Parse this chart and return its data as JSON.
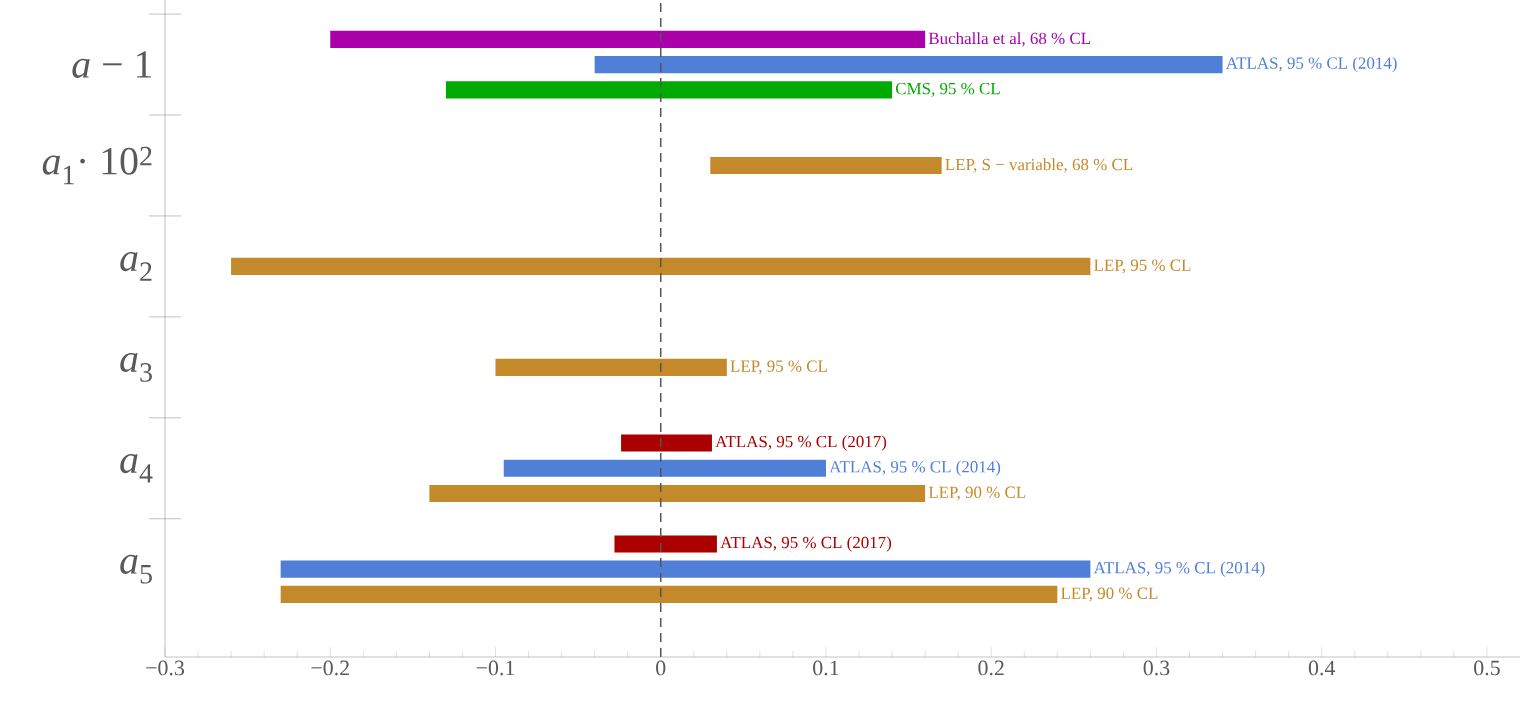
{
  "chart_data": {
    "type": "bar",
    "orientation": "horizontal",
    "categories": [
      "*a* − 1",
      "*a*$_{1}$· 10$^{2}$",
      "*a*$_{2}$",
      "*a*$_{3}$",
      "*a*$_{4}$",
      "*a*$_{5}$"
    ],
    "series": [
      {
        "name": "Buchalla et al,  68 % CL",
        "color": "#aa00aa",
        "base": [
          -0.2,
          null,
          null,
          null,
          null,
          null
        ],
        "values": [
          0.36,
          null,
          null,
          null,
          null,
          null
        ]
      },
      {
        "name": "ATLAS,  95 % CL (2017)",
        "color": "#aa0000",
        "base": [
          null,
          null,
          null,
          null,
          -0.024,
          -0.028
        ],
        "values": [
          null,
          null,
          null,
          null,
          0.055,
          0.062
        ]
      },
      {
        "name": "ATLAS,  95 % CL (2014)",
        "color": "#507fd8",
        "base": [
          -0.04,
          null,
          null,
          null,
          -0.095,
          -0.23
        ],
        "values": [
          0.38,
          null,
          null,
          null,
          0.195,
          0.49
        ]
      },
      {
        "name": "CMS,  95 % CL",
        "color": "#00aa00",
        "base": [
          -0.13,
          null,
          null,
          null,
          null,
          null
        ],
        "values": [
          0.27,
          null,
          null,
          null,
          null,
          null
        ]
      },
      {
        "name": "LEP,  S − variable,  68 % CL",
        "color": "#c4892b",
        "base": [
          null,
          0.03,
          null,
          null,
          null,
          null
        ],
        "values": [
          null,
          0.14,
          null,
          null,
          null,
          null
        ]
      },
      {
        "name": "LEP,  95 % CL",
        "color": "#c4892b",
        "base": [
          null,
          null,
          -0.26,
          -0.1,
          null,
          null
        ],
        "values": [
          null,
          null,
          0.52,
          0.14,
          null,
          null
        ]
      },
      {
        "name": "LEP,  90 % CL",
        "color": "#c4892b",
        "base": [
          null,
          null,
          null,
          null,
          -0.14,
          -0.23
        ],
        "values": [
          null,
          null,
          null,
          null,
          0.3,
          0.47
        ]
      }
    ],
    "xlim": [
      -0.3,
      0.52
    ],
    "xticks": [
      {
        "value": -0.3,
        "label": "−0.3"
      },
      {
        "value": -0.2,
        "label": "−0.2"
      },
      {
        "value": -0.1,
        "label": "−0.1"
      },
      0,
      0.1,
      0.2,
      0.3,
      0.4,
      0.5
    ],
    "ref_lines": [
      {
        "axis": "x",
        "value": 0,
        "color": "#555555",
        "line_style": "dashed"
      }
    ]
  }
}
